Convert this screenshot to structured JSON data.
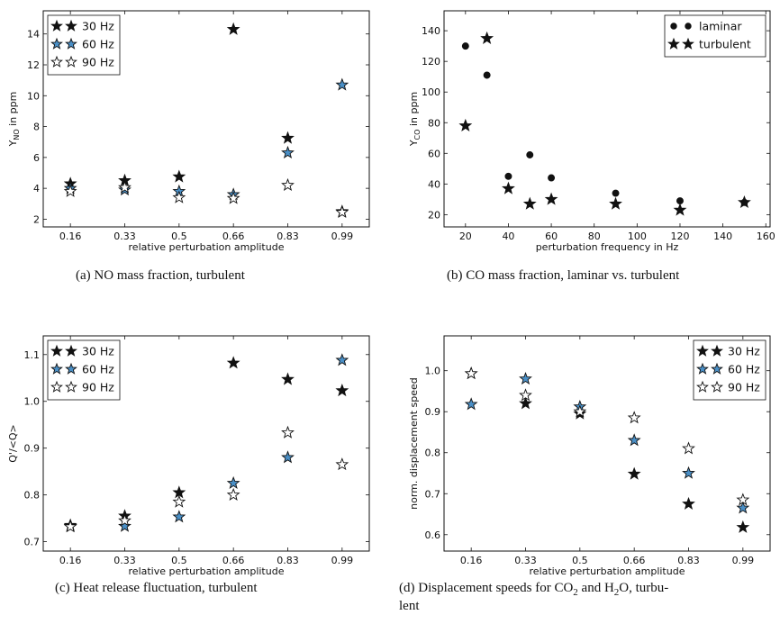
{
  "colors": {
    "black": "#111111",
    "blue": "#4a8fc6",
    "white": "#ffffff"
  },
  "chart_data": [
    {
      "type": "scatter",
      "caption": "(a)  NO mass fraction, turbulent",
      "xlabel": "relative perturbation amplitude",
      "ylabel": "Y",
      "ylabel_sub": "NO",
      "ylabel_suffix": " in ppm",
      "x_categorical": true,
      "categories": [
        "0.16",
        "0.33",
        "0.5",
        "0.66",
        "0.83",
        "0.99"
      ],
      "ylim": [
        1.5,
        15.5
      ],
      "yticks": [
        "2",
        "4",
        "6",
        "8",
        "10",
        "12",
        "14"
      ],
      "legend": "top-left",
      "series": [
        {
          "name": "30 Hz",
          "marker": "star",
          "color": "#111111",
          "values": [
            4.3,
            4.5,
            4.75,
            14.3,
            7.25,
            2.5
          ]
        },
        {
          "name": "60 Hz",
          "marker": "star",
          "color": "#4a8fc6",
          "values": [
            4.0,
            3.9,
            3.8,
            3.6,
            6.3,
            10.7
          ]
        },
        {
          "name": "90 Hz",
          "marker": "star",
          "color": "#ffffff",
          "values": [
            3.8,
            4.05,
            3.4,
            3.35,
            4.2,
            2.45
          ]
        }
      ]
    },
    {
      "type": "scatter",
      "caption": "(b)  CO mass fraction, laminar vs. turbulent",
      "xlabel": "perturbation frequency in Hz",
      "ylabel": "Y",
      "ylabel_sub": "CO",
      "ylabel_suffix": " in ppm",
      "x_categorical": false,
      "xlim": [
        10,
        162
      ],
      "xticks": [
        "20",
        "40",
        "60",
        "80",
        "100",
        "120",
        "140",
        "160"
      ],
      "ylim": [
        12,
        153
      ],
      "yticks": [
        "20",
        "40",
        "60",
        "80",
        "100",
        "120",
        "140"
      ],
      "legend": "top-right",
      "series": [
        {
          "name": "laminar",
          "marker": "circle",
          "color": "#111111",
          "x": [
            20,
            30,
            40,
            50,
            60,
            90,
            120,
            150
          ],
          "values": [
            130,
            111,
            45,
            59,
            44,
            34,
            29,
            28
          ]
        },
        {
          "name": "turbulent",
          "marker": "star",
          "color": "#111111",
          "x": [
            20,
            30,
            40,
            50,
            60,
            90,
            120,
            150
          ],
          "values": [
            78,
            135,
            37,
            27,
            30,
            27,
            23,
            28
          ]
        }
      ]
    },
    {
      "type": "scatter",
      "caption": "(c)  Heat release fluctuation, turbulent",
      "xlabel": "relative perturbation amplitude",
      "ylabel": "Q'/<Q>",
      "ylabel_sub": "",
      "ylabel_suffix": "",
      "x_categorical": true,
      "categories": [
        "0.16",
        "0.33",
        "0.5",
        "0.66",
        "0.83",
        "0.99"
      ],
      "ylim": [
        0.68,
        1.14
      ],
      "yticks": [
        "0.7",
        "0.8",
        "0.9",
        "1.0",
        "1.1"
      ],
      "legend": "top-left",
      "series": [
        {
          "name": "30 Hz",
          "marker": "star",
          "color": "#111111",
          "values": [
            0.735,
            0.755,
            0.805,
            1.082,
            1.047,
            1.023
          ]
        },
        {
          "name": "60 Hz",
          "marker": "star",
          "color": "#4a8fc6",
          "values": [
            0.733,
            0.733,
            0.753,
            0.825,
            0.88,
            1.088
          ]
        },
        {
          "name": "90 Hz",
          "marker": "star",
          "color": "#ffffff",
          "values": [
            0.732,
            0.745,
            0.785,
            0.8,
            0.933,
            0.865
          ]
        }
      ]
    },
    {
      "type": "scatter",
      "caption": "(d)  Displacement speeds for CO",
      "caption_sub1": "2",
      "caption_mid": " and H",
      "caption_sub2": "2",
      "caption_end": "O, turbu-",
      "caption_line2": "lent",
      "xlabel": "relative perturbation amplitude",
      "ylabel": "norm. displacement speed",
      "ylabel_sub": "",
      "ylabel_suffix": "",
      "x_categorical": true,
      "categories": [
        "0.16",
        "0.33",
        "0.5",
        "0.66",
        "0.83",
        "0.99"
      ],
      "ylim": [
        0.56,
        1.085
      ],
      "yticks": [
        "0.6",
        "0.7",
        "0.8",
        "0.9",
        "1.0"
      ],
      "legend": "top-right",
      "series": [
        {
          "name": "30 Hz",
          "marker": "star",
          "color": "#111111",
          "values": [
            0.993,
            0.92,
            0.895,
            0.748,
            0.675,
            0.618
          ]
        },
        {
          "name": "60 Hz",
          "marker": "star",
          "color": "#4a8fc6",
          "values": [
            0.918,
            0.98,
            0.912,
            0.83,
            0.75,
            0.665
          ]
        },
        {
          "name": "90 Hz",
          "marker": "star",
          "color": "#ffffff",
          "values": [
            0.993,
            0.94,
            0.9,
            0.885,
            0.81,
            0.685
          ]
        }
      ]
    }
  ]
}
